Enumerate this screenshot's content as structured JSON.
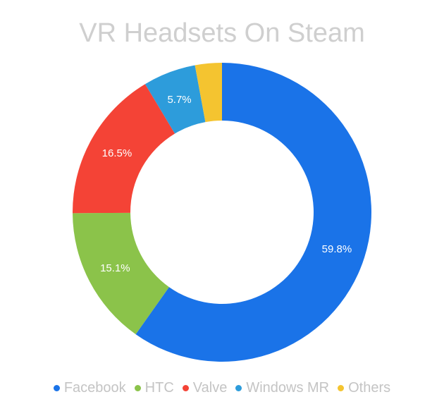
{
  "chart_data": {
    "type": "pie",
    "title": "VR Headsets On Steam",
    "legend_position": "bottom",
    "donut": true,
    "slices": [
      {
        "name": "Facebook",
        "value": 59.8,
        "label": "59.8%",
        "color": "#1a73e8"
      },
      {
        "name": "HTC",
        "value": 15.1,
        "label": "15.1%",
        "color": "#8bc34a"
      },
      {
        "name": "Valve",
        "value": 16.5,
        "label": "16.5%",
        "color": "#f44336"
      },
      {
        "name": "Windows MR",
        "value": 5.7,
        "label": "5.7%",
        "color": "#2d9cdb"
      },
      {
        "name": "Others",
        "value": 2.9,
        "label": "",
        "color": "#f4c430"
      }
    ]
  }
}
